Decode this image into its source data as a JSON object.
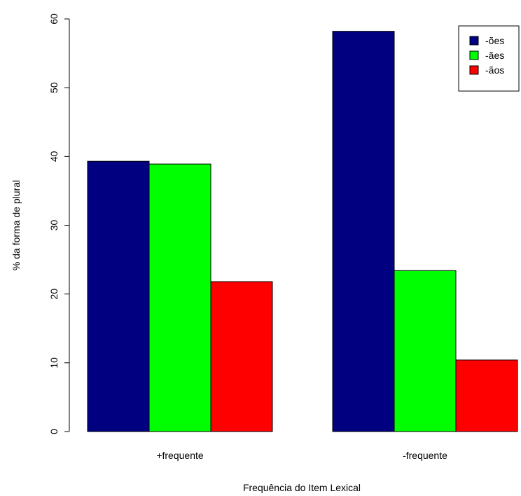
{
  "chart_data": {
    "type": "bar",
    "title": "",
    "xlabel": "Frequência do Item Lexical",
    "ylabel": "% da forma de plural",
    "ylim": [
      0,
      60
    ],
    "yticks": [
      "0",
      "10",
      "20",
      "30",
      "40",
      "50",
      "60"
    ],
    "grid": false,
    "legend_position": "top-right",
    "categories": [
      "+frequente",
      "-frequente"
    ],
    "series": [
      {
        "name": "-ões",
        "color": "#000080",
        "values": [
          39.3,
          58.2
        ]
      },
      {
        "name": "-ães",
        "color": "#00ff00",
        "values": [
          38.9,
          23.4
        ]
      },
      {
        "name": "-ãos",
        "color": "#ff0000",
        "values": [
          21.8,
          10.4
        ]
      }
    ]
  }
}
